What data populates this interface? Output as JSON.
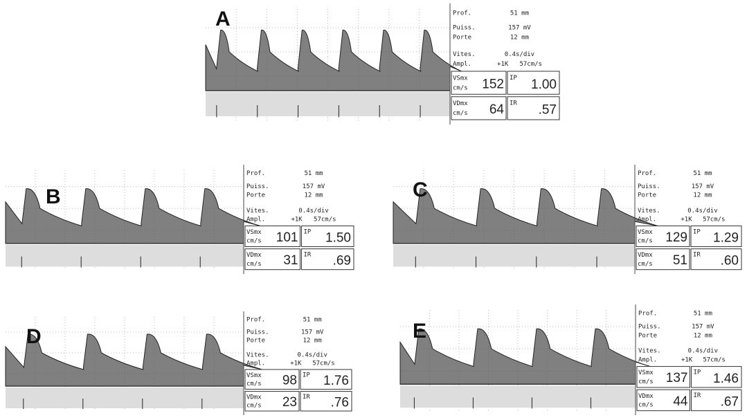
{
  "panels": [
    {
      "label": "A",
      "prof_label": "Prof.",
      "prof": "51 mm",
      "puiss_label": "Puiss.",
      "puiss": "157 mV",
      "porte_label": "Porte",
      "porte": "12 mm",
      "vites_label": "Vites.",
      "vites": "0.4s/div",
      "ampl_label": "Ampl.",
      "ampl_gain": "+1K",
      "ampl_scale": "57cm/s",
      "vsmx_label": "VSmx",
      "vsmx_unit": "cm/s",
      "vsmx": "152",
      "ip_label": "IP",
      "ip": "1.00",
      "vdmx_label": "VDmx",
      "vdmx_unit": "cm/s",
      "vdmx": "64",
      "ir_label": "IR",
      "ir": ".57"
    },
    {
      "label": "B",
      "prof_label": "Prof.",
      "prof": "51 mm",
      "puiss_label": "Puiss.",
      "puiss": "157 mV",
      "porte_label": "Porte",
      "porte": "12 mm",
      "vites_label": "Vites.",
      "vites": "0.4s/div",
      "ampl_label": "Ampl.",
      "ampl_gain": "+1K",
      "ampl_scale": "57cm/s",
      "vsmx_label": "VSmx",
      "vsmx_unit": "cm/s",
      "vsmx": "101",
      "ip_label": "IP",
      "ip": "1.50",
      "vdmx_label": "VDmx",
      "vdmx_unit": "cm/s",
      "vdmx": "31",
      "ir_label": "IR",
      "ir": ".69"
    },
    {
      "label": "C",
      "prof_label": "Prof.",
      "prof": "51 mm",
      "puiss_label": "Puiss.",
      "puiss": "157 mV",
      "porte_label": "Porte",
      "porte": "12 mm",
      "vites_label": "Vites.",
      "vites": "0.4s/div",
      "ampl_label": "Ampl.",
      "ampl_gain": "+1K",
      "ampl_scale": "57cm/s",
      "vsmx_label": "VSmx",
      "vsmx_unit": "cm/s",
      "vsmx": "129",
      "ip_label": "IP",
      "ip": "1.29",
      "vdmx_label": "VDmx",
      "vdmx_unit": "cm/s",
      "vdmx": "51",
      "ir_label": "IR",
      "ir": ".60"
    },
    {
      "label": "D",
      "prof_label": "Prof.",
      "prof": "51 mm",
      "puiss_label": "Puiss.",
      "puiss": "157 mV",
      "porte_label": "Porte",
      "porte": "12 mm",
      "vites_label": "Vites.",
      "vites": "0.4s/div",
      "ampl_label": "Ampl.",
      "ampl_gain": "+1K",
      "ampl_scale": "57cm/s",
      "vsmx_label": "VSmx",
      "vsmx_unit": "cm/s",
      "vsmx": "98",
      "ip_label": "IP",
      "ip": "1.76",
      "vdmx_label": "VDmx",
      "vdmx_unit": "cm/s",
      "vdmx": "23",
      "ir_label": "IR",
      "ir": ".76"
    },
    {
      "label": "E",
      "prof_label": "Prof.",
      "prof": "51 mm",
      "puiss_label": "Puiss.",
      "puiss": "157 mV",
      "porte_label": "Porte",
      "porte": "12 mm",
      "vites_label": "Vites.",
      "vites": "0.4s/div",
      "ampl_label": "Ampl.",
      "ampl_gain": "+1K",
      "ampl_scale": "57cm/s",
      "vsmx_label": "VSmx",
      "vsmx_unit": "cm/s",
      "vsmx": "137",
      "ip_label": "IP",
      "ip": "1.46",
      "vdmx_label": "VDmx",
      "vdmx_unit": "cm/s",
      "vdmx": "44",
      "ir_label": "IR",
      "ir": ".67"
    }
  ]
}
